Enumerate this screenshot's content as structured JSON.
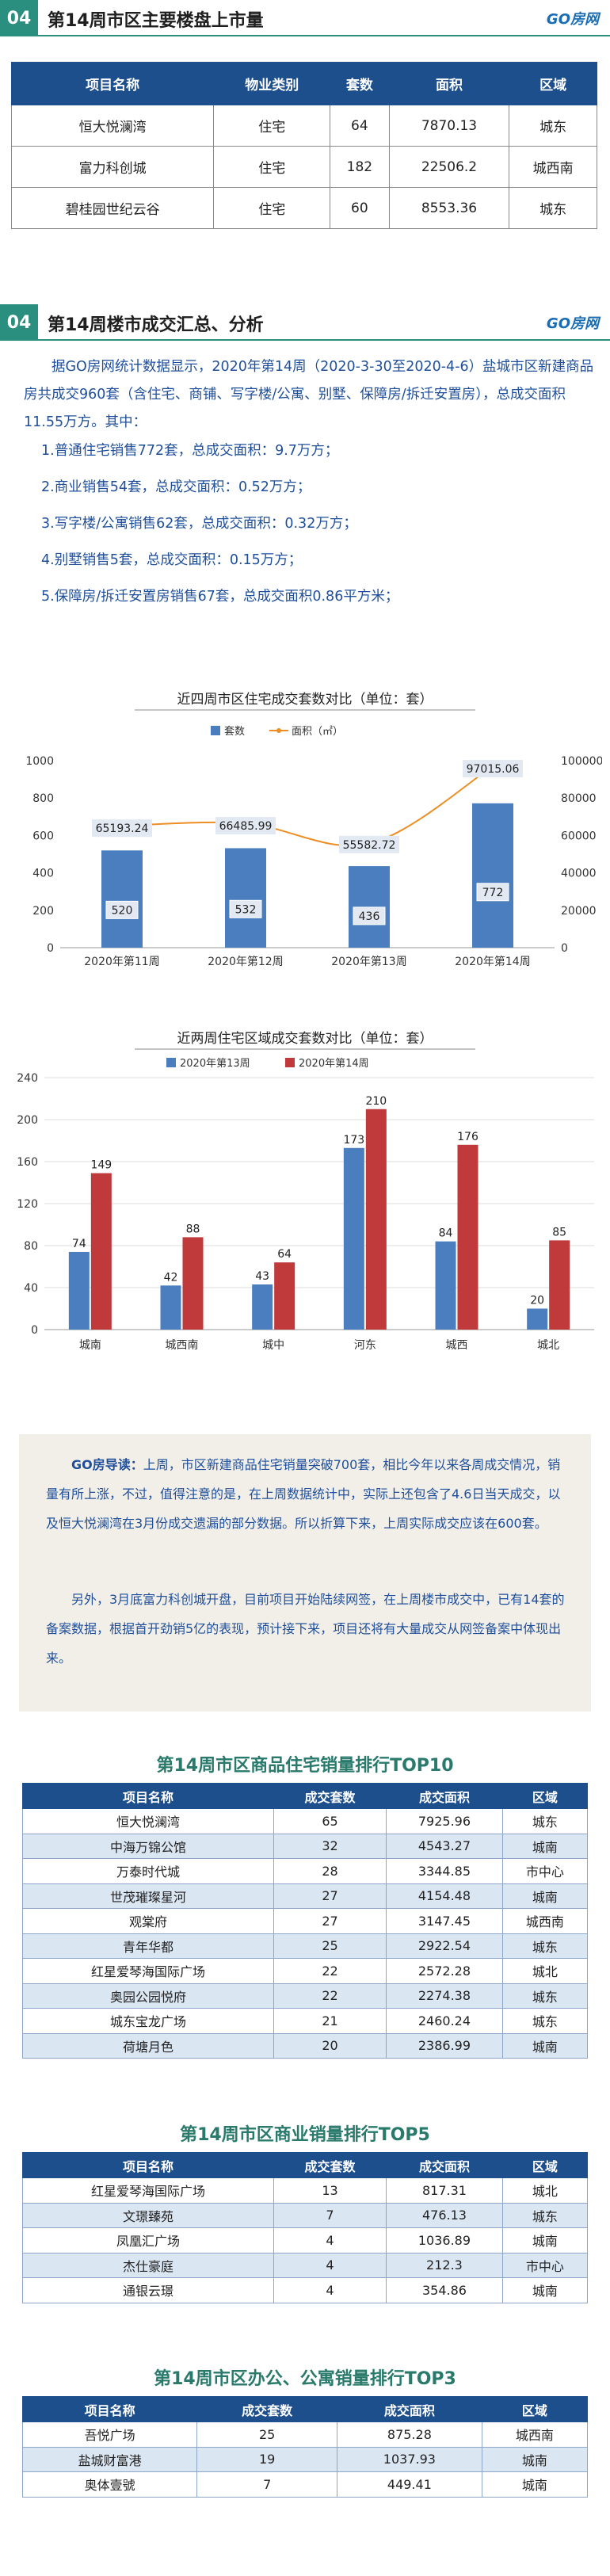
{
  "section3": {
    "num": "04",
    "title": "第14周市区主要楼盘上市量",
    "brand": "GO房网"
  },
  "table_listings": {
    "headers": [
      "项目名称",
      "物业类别",
      "套数",
      "面积",
      "区域"
    ],
    "rows": [
      [
        "恒大悦澜湾",
        "住宅",
        "64",
        "7870.13",
        "城东"
      ],
      [
        "富力科创城",
        "住宅",
        "182",
        "22506.2",
        "城西南"
      ],
      [
        "碧桂园世纪云谷",
        "住宅",
        "60",
        "8553.36",
        "城东"
      ]
    ]
  },
  "section4": {
    "num": "04",
    "title": "第14周楼市成交汇总、分析",
    "brand": "GO房网"
  },
  "summary": {
    "intro": "据GO房网统计数据显示，2020年第14周（2020-3-30至2020-4-6）盐城市区新建商品房共成交960套（含住宅、商铺、写字楼/公寓、别墅、保障房/拆迁安置房），总成交面积11.55万方。其中：",
    "items": [
      "1.普通住宅销售772套，总成交面积：9.7万方；",
      "2.商业销售54套，总成交面积：0.52万方；",
      "3.写字楼/公寓销售62套，总成交面积：0.32万方；",
      "4.别墅销售5套，总成交面积：0.15万方；",
      "5.保障房/拆迁安置房销售67套，总成交面积0.86平方米；"
    ]
  },
  "chart_data": [
    {
      "type": "bar",
      "title": "近四周市区住宅成交套数对比（单位：套）",
      "categories": [
        "2020年第11周",
        "2020年第12周",
        "2020年第13周",
        "2020年第14周"
      ],
      "series": [
        {
          "name": "套数",
          "type": "bar",
          "axis": "left",
          "values": [
            520,
            532,
            436,
            772
          ],
          "color": "#4a7ebf"
        },
        {
          "name": "面积（㎡）",
          "type": "line",
          "axis": "right",
          "values": [
            65193.24,
            66485.99,
            55582.72,
            97015.06
          ],
          "color": "#ed8d22"
        }
      ],
      "ylim": [
        0,
        1000
      ],
      "yticks": [
        0,
        200,
        400,
        600,
        800,
        1000
      ],
      "y2lim": [
        0,
        100000
      ],
      "y2ticks": [
        0,
        20000,
        40000,
        60000,
        80000,
        100000
      ],
      "legend": "top",
      "grid": false
    },
    {
      "type": "bar",
      "title": "近两周住宅区域成交套数对比（单位：套）",
      "categories": [
        "城南",
        "城西南",
        "城中",
        "河东",
        "城西",
        "城北"
      ],
      "series": [
        {
          "name": "2020年第13周",
          "values": [
            74,
            42,
            43,
            173,
            84,
            20
          ],
          "color": "#4a7ebf"
        },
        {
          "name": "2020年第14周",
          "values": [
            149,
            88,
            64,
            210,
            176,
            85
          ],
          "color": "#c0393b"
        }
      ],
      "ylim": [
        0,
        240
      ],
      "yticks": [
        0,
        40,
        80,
        120,
        160,
        200,
        240
      ],
      "legend": "top",
      "grid": true
    }
  ],
  "note": {
    "label": "GO房导读：",
    "p1": "上周，市区新建商品住宅销量突破700套，相比今年以来各周成交情况，销量有所上涨，不过，值得注意的是，在上周数据统计中，实际上还包含了4.6日当天成交，以及恒大悦澜湾在3月份成交遗漏的部分数据。所以折算下来，上周实际成交应该在600套。",
    "p2": "另外，3月底富力科创城开盘，目前项目开始陆续网签，在上周楼市成交中，已有14套的备案数据，根据首开劲销5亿的表现，预计接下来，项目还将有大量成交从网签备案中体现出来。"
  },
  "rank_residential": {
    "title": "第14周市区商品住宅销量排行TOP10",
    "headers": [
      "项目名称",
      "成交套数",
      "成交面积",
      "区域"
    ],
    "rows": [
      [
        "恒大悦澜湾",
        "65",
        "7925.96",
        "城东"
      ],
      [
        "中海万锦公馆",
        "32",
        "4543.27",
        "城南"
      ],
      [
        "万泰时代城",
        "28",
        "3344.85",
        "市中心"
      ],
      [
        "世茂璀璨星河",
        "27",
        "4154.48",
        "城南"
      ],
      [
        "观棠府",
        "27",
        "3147.45",
        "城西南"
      ],
      [
        "青年华都",
        "25",
        "2922.54",
        "城东"
      ],
      [
        "红星爱琴海国际广场",
        "22",
        "2572.28",
        "城北"
      ],
      [
        "奥园公园悦府",
        "22",
        "2274.38",
        "城东"
      ],
      [
        "城东宝龙广场",
        "21",
        "2460.24",
        "城东"
      ],
      [
        "荷塘月色",
        "20",
        "2386.99",
        "城南"
      ]
    ]
  },
  "rank_commercial": {
    "title": "第14周市区商业销量排行TOP5",
    "headers": [
      "项目名称",
      "成交套数",
      "成交面积",
      "区域"
    ],
    "rows": [
      [
        "红星爱琴海国际广场",
        "13",
        "817.31",
        "城北"
      ],
      [
        "文璟臻苑",
        "7",
        "476.13",
        "城东"
      ],
      [
        "凤凰汇广场",
        "4",
        "1036.89",
        "城南"
      ],
      [
        "杰仕豪庭",
        "4",
        "212.3",
        "市中心"
      ],
      [
        "通银云璟",
        "4",
        "354.86",
        "城南"
      ]
    ]
  },
  "rank_office": {
    "title": "第14周市区办公、公寓销量排行TOP3",
    "headers": [
      "项目名称",
      "成交套数",
      "成交面积",
      "区域"
    ],
    "rows": [
      [
        "吾悦广场",
        "25",
        "875.28",
        "城西南"
      ],
      [
        "盐城财富港",
        "19",
        "1037.93",
        "城南"
      ],
      [
        "奥体壹號",
        "7",
        "449.41",
        "城南"
      ]
    ]
  },
  "colors": {
    "teal": "#2a8f7e",
    "navy": "#1d4f8c",
    "blue_text": "#1f4f9a",
    "bar_blue": "#4a7ebf",
    "bar_red": "#c0393b",
    "line_orange": "#ed8d22"
  }
}
